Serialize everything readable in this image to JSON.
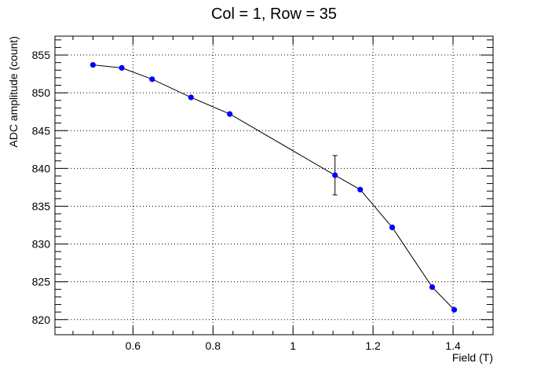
{
  "chart_data": {
    "type": "scatter",
    "title": "Col = 1, Row = 35",
    "xlabel": "Field (T)",
    "ylabel": "ADC amplitude (count)",
    "xlim": [
      0.405,
      1.5
    ],
    "ylim": [
      818,
      857.5
    ],
    "x_ticks": [
      0.6,
      0.8,
      1,
      1.2,
      1.4
    ],
    "x_tick_labels": [
      "0.6",
      "0.8",
      "1",
      "1.2",
      "1.4"
    ],
    "y_ticks": [
      820,
      825,
      830,
      835,
      840,
      845,
      850,
      855
    ],
    "y_tick_labels": [
      "820",
      "825",
      "830",
      "835",
      "840",
      "845",
      "850",
      "855"
    ],
    "grid": true,
    "legend": "none",
    "series": [
      {
        "x": [
          0.5,
          0.572,
          0.648,
          0.745,
          0.842,
          1.105,
          1.168,
          1.248,
          1.348,
          1.403
        ],
        "y": [
          853.7,
          853.3,
          851.8,
          849.4,
          847.2,
          839.1,
          837.2,
          832.2,
          824.3,
          821.3
        ],
        "yerr": [
          0,
          0,
          0,
          0,
          0,
          2.6,
          0,
          0,
          0,
          0
        ],
        "marker_color": "#0000ff",
        "line_color": "#000000"
      }
    ]
  }
}
